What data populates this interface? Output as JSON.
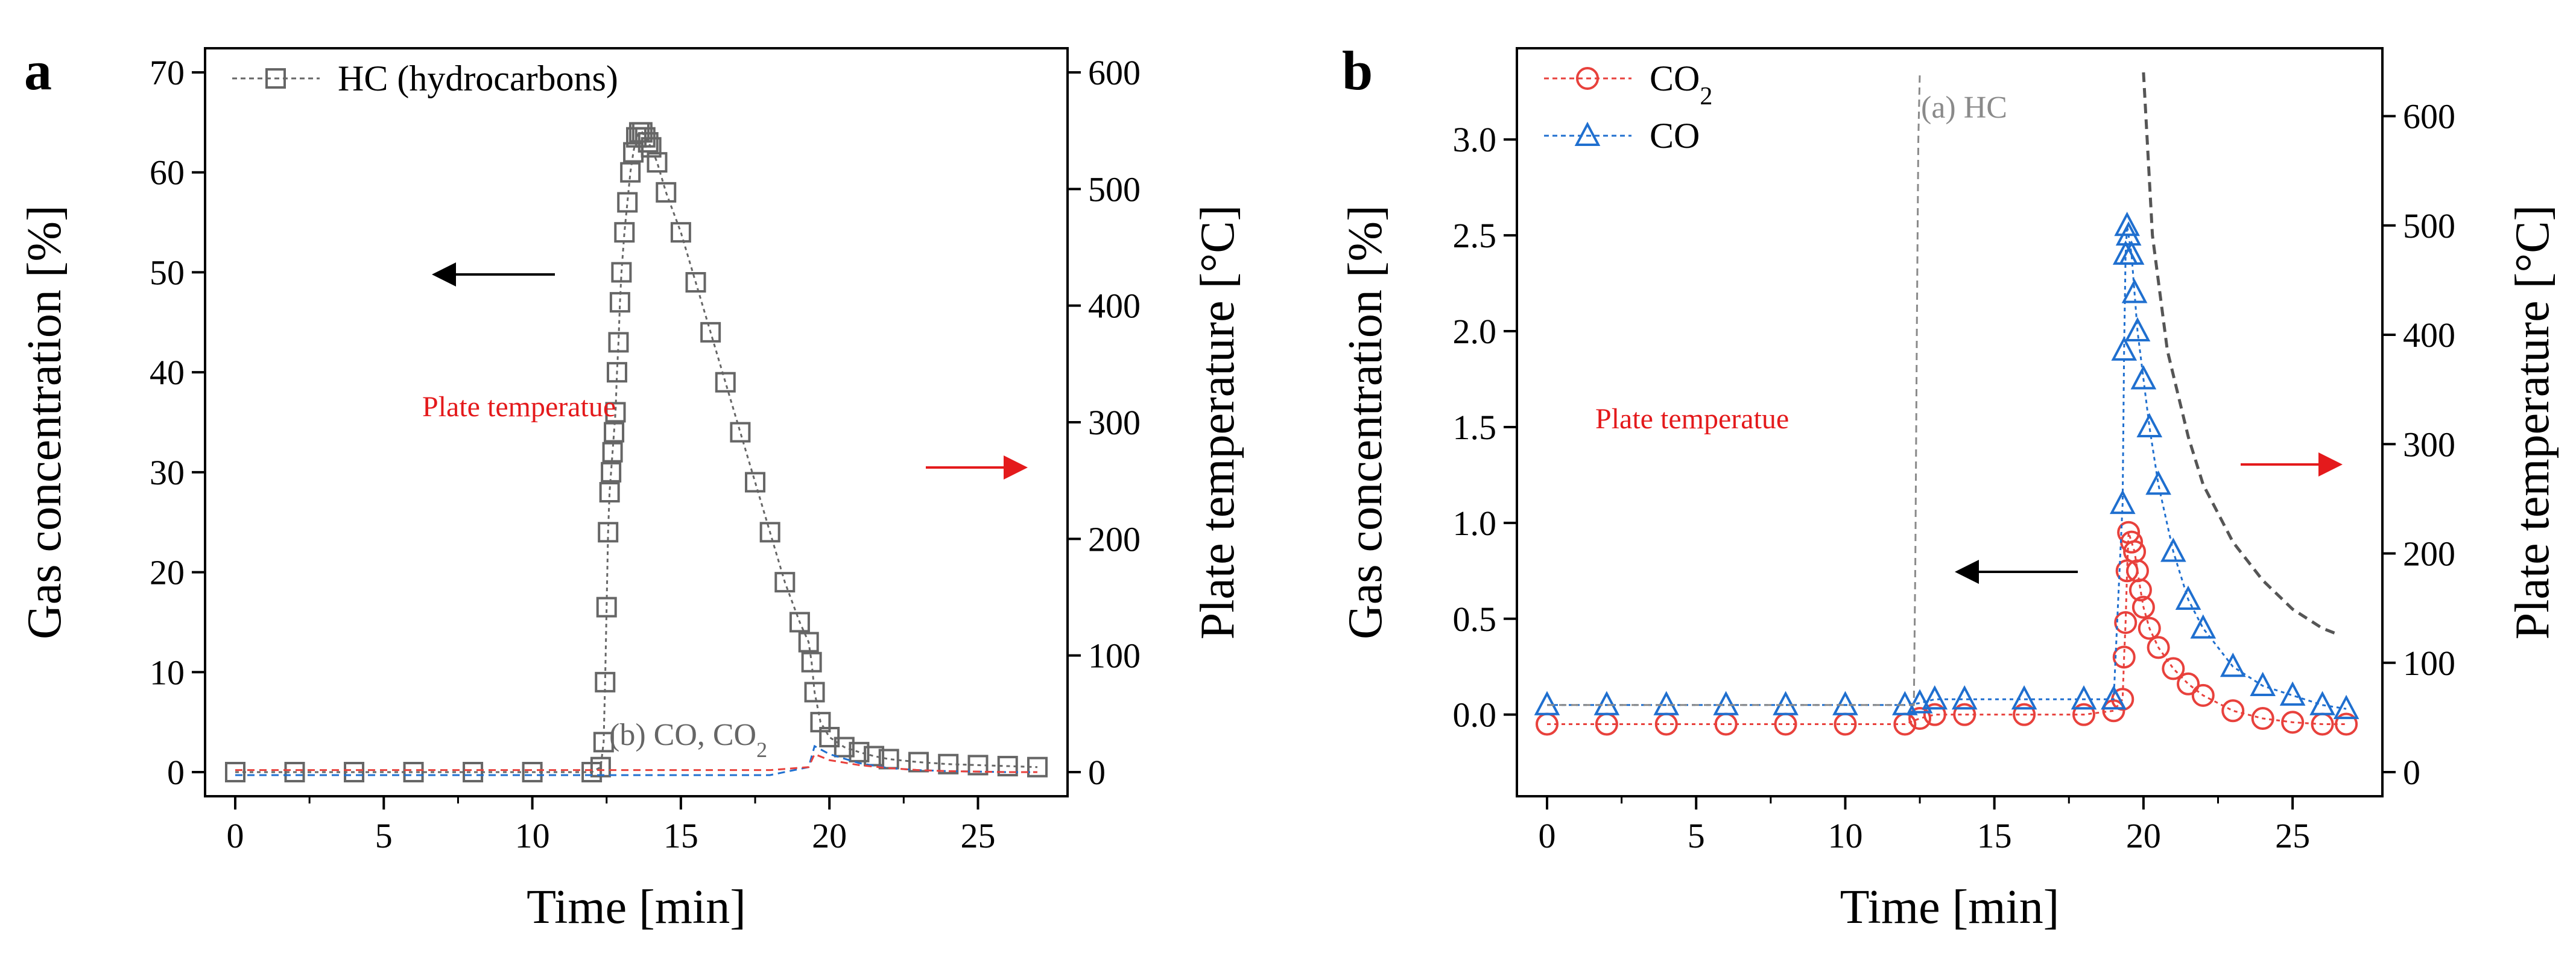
{
  "panels": [
    {
      "panel_label": "a",
      "series_annotation": "(b) CO, CO",
      "series_annotation_sub": "2",
      "plate_label": "Plate temperatue",
      "legend": [
        {
          "label": "HC (hydrocarbons)",
          "sub": "",
          "color": "#666666",
          "marker": "square"
        }
      ]
    },
    {
      "panel_label": "b",
      "series_annotation": "(a) HC",
      "series_annotation_sub": "",
      "plate_label": "Plate temperatue",
      "legend": [
        {
          "label": "CO",
          "sub": "2",
          "color": "#e8413c",
          "marker": "circle"
        },
        {
          "label": "CO",
          "sub": "",
          "color": "#1f6fcf",
          "marker": "triangle"
        }
      ]
    }
  ],
  "chart_data": [
    {
      "type": "scatter",
      "panel": "a",
      "xlabel": "Time  [min]",
      "ylabel": "Gas concentration  [%]",
      "y2label": "Plate temperature  [°C]",
      "xlim": [
        0,
        27
      ],
      "ylim": [
        0,
        70
      ],
      "y2lim": [
        0,
        600
      ],
      "xticks": [
        0,
        5,
        10,
        15,
        20,
        25
      ],
      "yticks": [
        0,
        10,
        20,
        30,
        40,
        50,
        60,
        70
      ],
      "y2ticks": [
        0,
        100,
        200,
        300,
        400,
        500,
        600
      ],
      "series": [
        {
          "name": "HC (hydrocarbons)",
          "color": "#666666",
          "marker": "square",
          "x": [
            0,
            2,
            4,
            6,
            8,
            10,
            12,
            12.3,
            12.4,
            12.45,
            12.5,
            12.55,
            12.6,
            12.65,
            12.7,
            12.75,
            12.8,
            12.85,
            12.9,
            12.95,
            13.0,
            13.1,
            13.2,
            13.3,
            13.4,
            13.5,
            13.6,
            13.7,
            13.8,
            13.9,
            14.0,
            14.2,
            14.5,
            15,
            15.5,
            16,
            16.5,
            17,
            17.5,
            18,
            18.5,
            19,
            19.3,
            19.4,
            19.5,
            19.7,
            20,
            20.5,
            21,
            21.5,
            22,
            23,
            24,
            25,
            26,
            27
          ],
          "y": [
            0,
            0,
            0,
            0,
            0,
            0,
            0,
            0.5,
            3,
            9,
            16.5,
            24,
            28,
            30,
            32,
            34,
            36,
            40,
            43,
            47,
            50,
            54,
            57,
            60,
            62,
            63.5,
            64,
            64,
            63.5,
            63,
            62.5,
            61,
            58,
            54,
            49,
            44,
            39,
            34,
            29,
            24,
            19,
            15,
            13,
            11,
            8,
            5,
            3.5,
            2.5,
            2,
            1.6,
            1.3,
            1.0,
            0.8,
            0.7,
            0.6,
            0.5
          ]
        },
        {
          "name": "CO (b)",
          "color": "#1f6fcf",
          "marker": "line",
          "x": [
            0,
            12,
            18,
            19.3,
            19.5,
            20,
            21,
            22,
            23,
            24,
            25,
            26,
            27
          ],
          "y": [
            -0.3,
            -0.3,
            -0.3,
            0.5,
            2.6,
            1.8,
            0.9,
            0.4,
            0.2,
            0.1,
            0.05,
            0.0,
            0.0
          ]
        },
        {
          "name": "CO2 (b)",
          "color": "#e8413c",
          "marker": "line",
          "x": [
            0,
            12,
            18,
            19.3,
            19.5,
            20,
            21,
            22,
            23,
            24,
            25,
            26,
            27
          ],
          "y": [
            0.2,
            0.2,
            0.2,
            0.5,
            1.8,
            1.2,
            0.7,
            0.4,
            0.2,
            0.1,
            0.05,
            0.0,
            0.0
          ]
        }
      ]
    },
    {
      "type": "scatter",
      "panel": "b",
      "xlabel": "Time  [min]",
      "ylabel": "Gas concentration  [%]",
      "y2label": "Plate temperature  [°C]",
      "xlim": [
        0,
        27
      ],
      "ylim": [
        -0.3,
        3.35
      ],
      "y2lim": [
        0,
        640
      ],
      "xticks": [
        0,
        5,
        10,
        15,
        20,
        25
      ],
      "yticks": [
        0.0,
        0.5,
        1.0,
        1.5,
        2.0,
        2.5,
        3.0
      ],
      "ytick_labels": [
        "0.0",
        "0.5",
        "1.0",
        "1.5",
        "2.0",
        "2.5",
        "3.0"
      ],
      "y2ticks": [
        0,
        100,
        200,
        300,
        400,
        500,
        600
      ],
      "series": [
        {
          "name": "CO2",
          "color": "#e8413c",
          "marker": "circle",
          "x": [
            0,
            2,
            4,
            6,
            8,
            10,
            12,
            12.5,
            13,
            14,
            16,
            18,
            19,
            19.3,
            19.35,
            19.4,
            19.45,
            19.5,
            19.6,
            19.7,
            19.8,
            19.9,
            20,
            20.2,
            20.5,
            21,
            21.5,
            22,
            23,
            24,
            25,
            26,
            26.8
          ],
          "y": [
            -0.05,
            -0.05,
            -0.05,
            -0.05,
            -0.05,
            -0.05,
            -0.05,
            -0.02,
            0,
            0,
            0,
            0,
            0.02,
            0.08,
            0.3,
            0.48,
            0.75,
            0.95,
            0.9,
            0.85,
            0.75,
            0.65,
            0.56,
            0.45,
            0.35,
            0.24,
            0.16,
            0.1,
            0.02,
            -0.02,
            -0.04,
            -0.05,
            -0.05
          ]
        },
        {
          "name": "CO",
          "color": "#1f6fcf",
          "marker": "triangle",
          "x": [
            0,
            2,
            4,
            6,
            8,
            10,
            12,
            12.5,
            13,
            14,
            16,
            18,
            19,
            19.3,
            19.35,
            19.4,
            19.45,
            19.5,
            19.6,
            19.7,
            19.8,
            20,
            20.2,
            20.5,
            21,
            21.5,
            22,
            23,
            24,
            25,
            26,
            26.8
          ],
          "y": [
            0.05,
            0.05,
            0.05,
            0.05,
            0.05,
            0.05,
            0.05,
            0.06,
            0.08,
            0.08,
            0.08,
            0.08,
            0.08,
            1.1,
            1.9,
            2.4,
            2.55,
            2.5,
            2.4,
            2.2,
            2.0,
            1.75,
            1.5,
            1.2,
            0.85,
            0.6,
            0.45,
            0.25,
            0.15,
            0.1,
            0.05,
            0.03
          ]
        },
        {
          "name": "HC (a)",
          "color": "#8a8a8a",
          "marker": "line",
          "x": [
            0,
            12.3,
            12.35,
            12.4,
            12.45,
            12.5
          ],
          "y": [
            0.05,
            0.05,
            0.8,
            2.0,
            3.0,
            3.35
          ]
        },
        {
          "name": "Plate temperature (b)",
          "color": "#555555",
          "marker": "dashed",
          "x": [
            20.0,
            20.3,
            20.8,
            21.5,
            22,
            23,
            24,
            25,
            26,
            26.5
          ],
          "y": [
            3.35,
            2.5,
            1.9,
            1.45,
            1.2,
            0.9,
            0.7,
            0.55,
            0.45,
            0.42
          ]
        }
      ]
    }
  ]
}
